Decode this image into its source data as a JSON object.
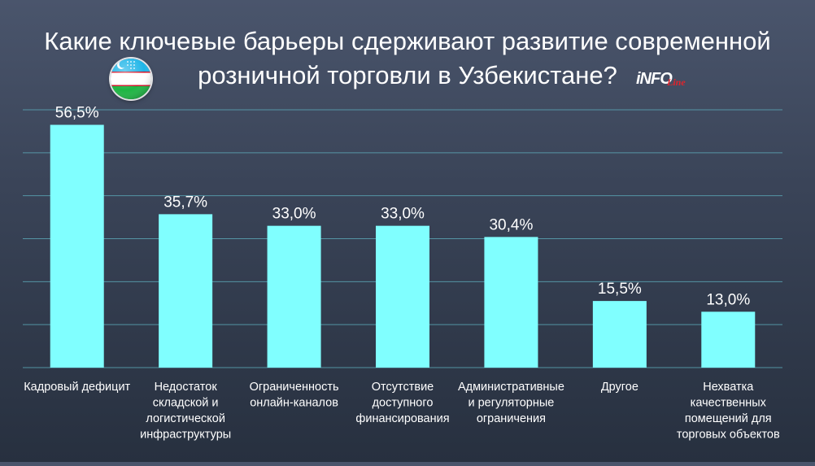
{
  "header": {
    "title_line1": "Какие ключевые барьеры сдерживают развитие современной",
    "title_line2": "розничной торговли в Узбекистане?"
  },
  "logo": {
    "brand": "iNFO",
    "sub": "Line"
  },
  "flag_icon": "uzbekistan-flag-icon",
  "colors": {
    "bar": "#80ffff",
    "grid": "#5aa3b3",
    "background_top": "#4a556c",
    "background_bottom": "#27303f"
  },
  "chart_data": {
    "type": "bar",
    "title": "Какие ключевые барьеры сдерживают развитие современной розничной торговли в Узбекистане?",
    "xlabel": "",
    "ylabel": "",
    "ylim": [
      0,
      60
    ],
    "grid": true,
    "categories": [
      [
        "Кадровый дефицит"
      ],
      [
        "Недостаток",
        "складской и",
        "логистической",
        "инфраструктуры"
      ],
      [
        "Ограниченность",
        "онлайн-каналов"
      ],
      [
        "Отсутствие",
        "доступного",
        "финансирования"
      ],
      [
        "Административные",
        "и регуляторные",
        "ограничения"
      ],
      [
        "Другое"
      ],
      [
        "Нехватка",
        "качественных",
        "помещений для",
        "торговых объектов"
      ]
    ],
    "values": [
      56.5,
      35.7,
      33.0,
      33.0,
      30.4,
      15.5,
      13.0
    ],
    "value_labels": [
      "56,5%",
      "35,7%",
      "33,0%",
      "33,0%",
      "30,4%",
      "15,5%",
      "13,0%"
    ]
  }
}
